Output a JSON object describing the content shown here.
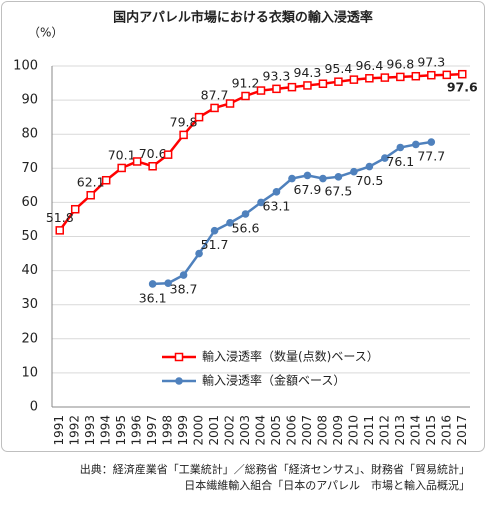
{
  "chart_data": {
    "type": "line",
    "title": "国内アパレル市場における衣類の輸入浸透率",
    "y_label": "（%）",
    "categories": [
      "1991",
      "1992",
      "1993",
      "1994",
      "1995",
      "1996",
      "1997",
      "1998",
      "1999",
      "2000",
      "2001",
      "2002",
      "2003",
      "2004",
      "2005",
      "2006",
      "2007",
      "2008",
      "2009",
      "2010",
      "2011",
      "2012",
      "2013",
      "2014",
      "2015",
      "2016",
      "2017"
    ],
    "series": [
      {
        "name": "輸入浸透率（数量(点数)ベース）",
        "color": "#ff0000",
        "marker": "square",
        "values": [
          51.8,
          58,
          62.1,
          66.5,
          70.1,
          72,
          70.6,
          74,
          79.8,
          85,
          87.7,
          89,
          91.2,
          92.8,
          93.3,
          93.8,
          94.3,
          94.8,
          95.4,
          96,
          96.4,
          96.6,
          96.8,
          97,
          97.3,
          97.4,
          97.6
        ],
        "value_labels": [
          "51.8",
          null,
          "62.1",
          null,
          "70.1",
          null,
          "70.6",
          null,
          "79.8",
          null,
          "87.7",
          null,
          "91.2",
          null,
          "93.3",
          null,
          "94.3",
          null,
          "95.4",
          null,
          "96.4",
          null,
          "96.8",
          null,
          "97.3",
          null,
          "97.6"
        ]
      },
      {
        "name": "輸入浸透率（金額ベース）",
        "color": "#4f81bd",
        "marker": "circle",
        "values": [
          null,
          null,
          null,
          null,
          null,
          null,
          36.1,
          36.3,
          38.7,
          45,
          51.7,
          54,
          56.6,
          60,
          63.1,
          67,
          67.9,
          67,
          67.5,
          69,
          70.5,
          73,
          76.1,
          77,
          77.7,
          null,
          null
        ],
        "value_labels": [
          null,
          null,
          null,
          null,
          null,
          null,
          "36.1",
          null,
          "38.7",
          null,
          "51.7",
          null,
          "56.6",
          null,
          "63.1",
          null,
          "67.9",
          null,
          "67.5",
          null,
          "70.5",
          null,
          "76.1",
          null,
          "77.7",
          null,
          null
        ]
      }
    ],
    "ylim": [
      0,
      100
    ],
    "yticks": [
      0,
      10,
      20,
      30,
      40,
      50,
      60,
      70,
      80,
      90,
      100
    ],
    "grid": true,
    "source": [
      "出典：経済産業省「工業統計」／総務省「経済センサス」、財務省「貿易統計」",
      "日本繊維輸入組合「日本のアパレル　市場と輸入品概況」"
    ]
  }
}
